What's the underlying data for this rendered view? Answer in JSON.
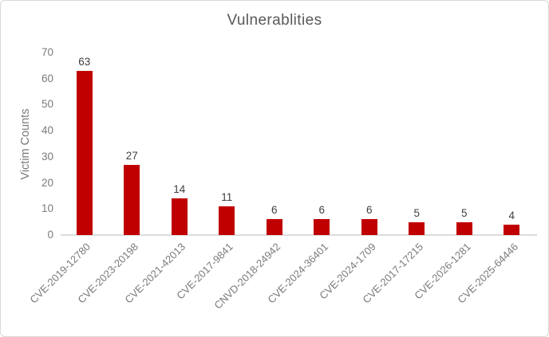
{
  "chart_data": {
    "type": "bar",
    "title": "Vulnerablities",
    "xlabel": "",
    "ylabel": "Victim Counts",
    "categories": [
      "CVE-2019-12780",
      "CVE-2023-20198",
      "CVE-2021-42013",
      "CVE-2017-9841",
      "CNVD-2018-24942",
      "CVE-2024-36401",
      "CVE-2024-1709",
      "CVE-2017-17215",
      "CVE-2026-1281",
      "CVE-2025-64446"
    ],
    "values": [
      63,
      27,
      14,
      11,
      6,
      6,
      6,
      5,
      5,
      4
    ],
    "ylim": [
      0,
      70
    ],
    "yticks": [
      0,
      10,
      20,
      30,
      40,
      50,
      60,
      70
    ],
    "grid": false,
    "legend": false,
    "data_labels": true,
    "x_label_rotation_deg": -45
  },
  "colors": {
    "bar": "#C00000",
    "title_text": "#595959",
    "axis_text": "#7A7A7A",
    "data_label_text": "#404040",
    "axis_line": "#DCDCDC",
    "frame_border": "#D9D9D9",
    "background": "#FFFFFF"
  }
}
